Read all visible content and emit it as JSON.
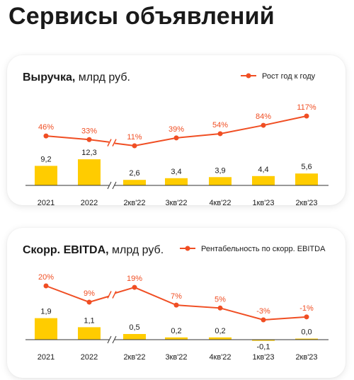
{
  "page": {
    "title": "Сервисы объявлений"
  },
  "colors": {
    "bar": "#FFCC00",
    "line": "#F04E23",
    "axis": "#333333",
    "text": "#1a1a1a"
  },
  "chart_data": [
    {
      "type": "bar",
      "title_bold": "Выручка,",
      "title_unit": " млрд руб.",
      "legend": "Рост год к году",
      "legend_position": "top-right",
      "grid": false,
      "axis_break_after_index": 1,
      "categories": [
        "2021",
        "2022",
        "2кв'22",
        "3кв'22",
        "4кв'22",
        "1кв'23",
        "2кв'23"
      ],
      "bar_labels": [
        "9,2",
        "12,3",
        "2,6",
        "3,4",
        "3,9",
        "4,4",
        "5,6"
      ],
      "series": [
        {
          "type": "bar",
          "values": [
            9.2,
            12.3,
            2.6,
            3.4,
            3.9,
            4.4,
            5.6
          ]
        },
        {
          "type": "line",
          "name": "Рост год к году",
          "values": [
            46,
            33,
            11,
            39,
            54,
            84,
            117
          ],
          "labels": [
            "46%",
            "33%",
            "11%",
            "39%",
            "54%",
            "84%",
            "117%"
          ]
        }
      ]
    },
    {
      "type": "bar",
      "title_bold": "Скорр. EBITDA,",
      "title_unit": " млрд руб.",
      "legend": "Рентабельность по скорр. EBITDA",
      "legend_position": "top-right",
      "grid": false,
      "axis_break_after_index": 1,
      "categories": [
        "2021",
        "2022",
        "2кв'22",
        "3кв'22",
        "4кв'22",
        "1кв'23",
        "2кв'23"
      ],
      "bar_labels": [
        "1,9",
        "1,1",
        "0,5",
        "0,2",
        "0,2",
        "-0,1",
        "0,0"
      ],
      "series": [
        {
          "type": "bar",
          "values": [
            1.9,
            1.1,
            0.5,
            0.2,
            0.2,
            -0.1,
            0.0
          ]
        },
        {
          "type": "line",
          "name": "Рентабельность по скорр. EBITDA",
          "values": [
            20,
            9,
            19,
            7,
            5,
            -3,
            -1
          ],
          "labels": [
            "20%",
            "9%",
            "19%",
            "7%",
            "5%",
            "-3%",
            "-1%"
          ]
        }
      ]
    }
  ]
}
